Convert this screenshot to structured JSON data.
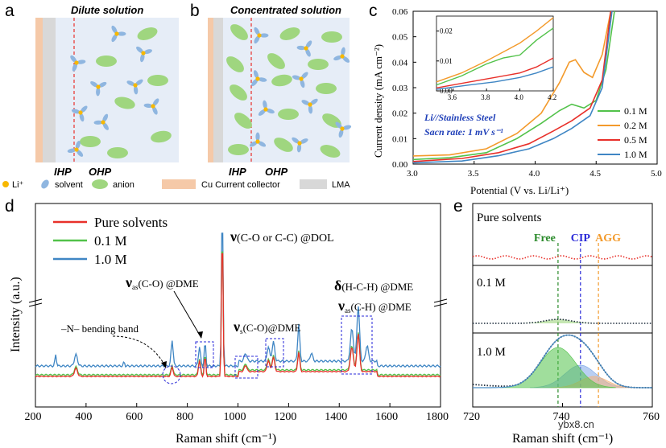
{
  "panel_labels": {
    "a": "a",
    "b": "b",
    "c": "c",
    "d": "d",
    "e": "e"
  },
  "schematic": {
    "title_a": "Dilute solution",
    "title_b": "Concentrated solution",
    "ihp": "IHP",
    "ohp": "OHP",
    "legend": {
      "li": "Li⁺",
      "solvent": "solvent",
      "anion": "anion",
      "cu": "Cu Current collector",
      "lma": "LMA"
    }
  },
  "colors": {
    "red": "#e8302a",
    "green": "#52c24a",
    "blue": "#3f86c4",
    "orange": "#f39a2b",
    "navy": "#1f3fb8",
    "darkblue": "#3a6fb8",
    "cu": "#f5c9a8",
    "lma": "#d8d8d8",
    "bg": "#e6edf7"
  },
  "chart_data": [
    {
      "id": "c",
      "type": "line",
      "title": "",
      "xlabel": "Potential (V vs. Li/Li⁺)",
      "ylabel": "Current density (mA cm⁻²)",
      "xlim": [
        3.0,
        5.0
      ],
      "ylim": [
        0,
        0.06
      ],
      "xticks": [
        "3.0",
        "3.5",
        "4.0",
        "4.5",
        "5.0"
      ],
      "yticks": [
        "0.00",
        "0.01",
        "0.02",
        "0.03",
        "0.04",
        "0.05",
        "0.06"
      ],
      "annotation_line1": "Li//Stainless Steel",
      "annotation_line2": "Sacn rate: 1 mV s⁻¹",
      "series": [
        {
          "name": "0.1 M",
          "color": "#52c24a",
          "points": [
            [
              3.0,
              0.0018
            ],
            [
              3.3,
              0.0025
            ],
            [
              3.6,
              0.0045
            ],
            [
              3.85,
              0.01
            ],
            [
              4.05,
              0.016
            ],
            [
              4.2,
              0.021
            ],
            [
              4.3,
              0.0235
            ],
            [
              4.4,
              0.022
            ],
            [
              4.5,
              0.025
            ],
            [
              4.58,
              0.037
            ],
            [
              4.65,
              0.06
            ]
          ]
        },
        {
          "name": "0.2 M",
          "color": "#f39a2b",
          "points": [
            [
              3.0,
              0.0032
            ],
            [
              3.3,
              0.0036
            ],
            [
              3.6,
              0.006
            ],
            [
              3.85,
              0.012
            ],
            [
              4.05,
              0.02
            ],
            [
              4.2,
              0.032
            ],
            [
              4.28,
              0.04
            ],
            [
              4.33,
              0.041
            ],
            [
              4.4,
              0.036
            ],
            [
              4.47,
              0.034
            ],
            [
              4.55,
              0.043
            ],
            [
              4.62,
              0.06
            ]
          ]
        },
        {
          "name": "0.5 M",
          "color": "#e8302a",
          "points": [
            [
              3.0,
              0.001
            ],
            [
              3.4,
              0.0022
            ],
            [
              3.7,
              0.0045
            ],
            [
              3.95,
              0.008
            ],
            [
              4.15,
              0.013
            ],
            [
              4.3,
              0.017
            ],
            [
              4.45,
              0.022
            ],
            [
              4.55,
              0.033
            ],
            [
              4.62,
              0.06
            ]
          ]
        },
        {
          "name": "1.0 M",
          "color": "#3f86c4",
          "points": [
            [
              3.0,
              0.0005
            ],
            [
              3.4,
              0.0012
            ],
            [
              3.7,
              0.0033
            ],
            [
              3.95,
              0.006
            ],
            [
              4.15,
              0.01
            ],
            [
              4.3,
              0.014
            ],
            [
              4.45,
              0.019
            ],
            [
              4.55,
              0.03
            ],
            [
              4.63,
              0.06
            ]
          ]
        }
      ],
      "inset": {
        "xlim": [
          3.5,
          4.2
        ],
        "ylim": [
          0,
          0.025
        ],
        "xticks": [
          "3.6",
          "3.8",
          "4.0",
          "4.2"
        ],
        "yticks": [
          "0.00",
          "0.01",
          "0.02"
        ]
      }
    },
    {
      "id": "d",
      "type": "line",
      "xlabel": "Raman shift (cm⁻¹)",
      "ylabel": "Intensity (a.u.)",
      "xlim": [
        200,
        1800
      ],
      "xticks": [
        "200",
        "400",
        "600",
        "800",
        "1000",
        "1200",
        "1400",
        "1600",
        "1800"
      ],
      "series": [
        {
          "name": "Pure solvents",
          "color": "#e8302a"
        },
        {
          "name": "0.1 M",
          "color": "#52c24a"
        },
        {
          "name": "1.0 M",
          "color": "#3f86c4"
        }
      ],
      "annotations": {
        "dol_nu": "ν",
        "dol": "(C-O or C-C) @DOL",
        "nuas_co": "ν",
        "nuas_co_sub": "as",
        "nuas_co_txt": "(C-O) @DME",
        "nus_co": "ν",
        "nus_co_sub": "s",
        "nus_co_txt": "(C-O)@DME",
        "delta": "δ",
        "delta_txt": "(H-C-H) @DME",
        "nuas_ch": "ν",
        "nuas_ch_sub": "as",
        "nuas_ch_txt": "(C-H) @DME",
        "bending": "–N– bending band"
      }
    },
    {
      "id": "e",
      "type": "line",
      "xlabel": "Raman shift (cm⁻¹)",
      "xlim": [
        720,
        760
      ],
      "xticks": [
        "720",
        "740",
        "760"
      ],
      "panels": [
        "Pure solvents",
        "0.1 M",
        "1.0 M"
      ],
      "markers": [
        {
          "label": "Free",
          "x": 739,
          "color": "#2a8a2a"
        },
        {
          "label": "CIP",
          "x": 744,
          "color": "#2a2ad8"
        },
        {
          "label": "AGG",
          "x": 748,
          "color": "#f39a2b"
        }
      ]
    }
  ],
  "watermark": "ybx8.cn"
}
